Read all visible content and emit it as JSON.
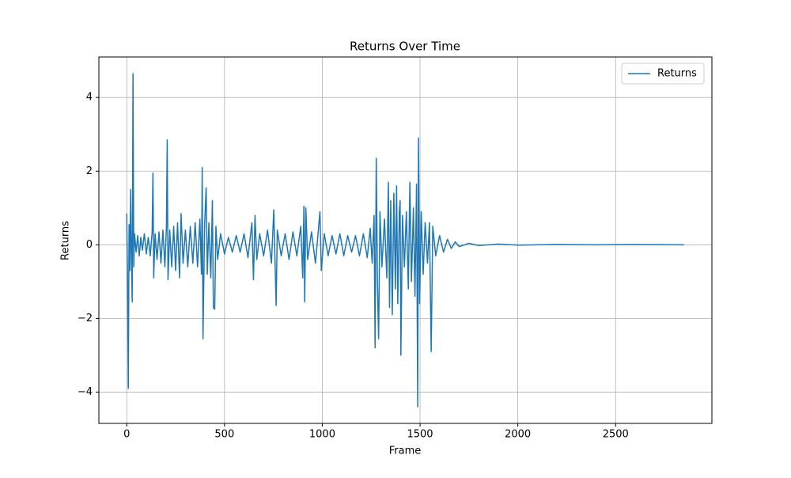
{
  "chart_data": {
    "type": "line",
    "title": "Returns Over Time",
    "x_label": "Frame",
    "y_label": "Returns",
    "x": [
      0,
      4,
      8,
      12,
      16,
      20,
      24,
      28,
      32,
      36,
      40,
      48,
      56,
      64,
      72,
      80,
      90,
      100,
      110,
      120,
      130,
      134,
      138,
      145,
      155,
      165,
      175,
      185,
      195,
      203,
      207,
      211,
      220,
      230,
      240,
      250,
      260,
      270,
      278,
      288,
      300,
      312,
      325,
      338,
      350,
      362,
      374,
      382,
      386,
      390,
      398,
      406,
      412,
      420,
      430,
      438,
      443,
      450,
      456,
      465,
      480,
      500,
      520,
      540,
      560,
      580,
      600,
      620,
      640,
      648,
      656,
      665,
      680,
      700,
      720,
      740,
      752,
      760,
      764,
      770,
      790,
      810,
      830,
      850,
      870,
      890,
      900,
      906,
      910,
      916,
      925,
      945,
      965,
      980,
      988,
      995,
      1010,
      1030,
      1050,
      1070,
      1090,
      1110,
      1130,
      1150,
      1170,
      1190,
      1210,
      1230,
      1245,
      1255,
      1265,
      1270,
      1276,
      1282,
      1288,
      1295,
      1305,
      1318,
      1330,
      1338,
      1344,
      1350,
      1358,
      1366,
      1374,
      1380,
      1386,
      1394,
      1398,
      1402,
      1410,
      1420,
      1430,
      1440,
      1448,
      1456,
      1466,
      1474,
      1482,
      1488,
      1492,
      1498,
      1506,
      1516,
      1526,
      1538,
      1548,
      1557,
      1565,
      1580,
      1600,
      1620,
      1640,
      1660,
      1680,
      1700,
      1750,
      1800,
      1900,
      2000,
      2200,
      2400,
      2600,
      2850
    ],
    "series": [
      {
        "name": "Returns",
        "color": "#1f77b4",
        "values": [
          0.85,
          -0.9,
          -3.9,
          0.55,
          -0.7,
          1.5,
          -0.3,
          -1.55,
          4.65,
          -0.6,
          0.3,
          -0.2,
          0.25,
          -0.3,
          0.2,
          -0.15,
          0.3,
          -0.25,
          0.2,
          -0.3,
          0.35,
          1.95,
          -0.9,
          0.3,
          -0.4,
          0.35,
          -0.5,
          0.4,
          -0.6,
          0.5,
          2.85,
          -0.95,
          0.4,
          -0.6,
          0.5,
          -0.7,
          0.6,
          -0.9,
          0.85,
          -0.5,
          0.4,
          -0.6,
          0.5,
          -0.5,
          0.6,
          -0.6,
          0.7,
          -0.8,
          2.1,
          -2.55,
          0.5,
          1.55,
          -0.8,
          0.6,
          -0.9,
          1.2,
          -1.7,
          -1.75,
          0.5,
          -0.4,
          0.3,
          -0.25,
          0.2,
          -0.2,
          0.25,
          -0.2,
          0.3,
          -0.35,
          0.6,
          -0.95,
          0.8,
          -0.4,
          0.3,
          -0.3,
          0.4,
          -0.5,
          0.95,
          -0.8,
          -1.65,
          0.4,
          -0.3,
          0.3,
          -0.4,
          0.35,
          -0.3,
          0.5,
          -0.9,
          1.05,
          -1.55,
          1.0,
          -0.4,
          0.35,
          -0.5,
          0.4,
          0.9,
          -0.7,
          0.3,
          -0.3,
          0.25,
          -0.25,
          0.3,
          -0.3,
          0.25,
          -0.2,
          0.25,
          -0.3,
          0.3,
          -0.35,
          0.45,
          -0.5,
          0.8,
          -2.8,
          2.35,
          -1.0,
          -2.55,
          0.9,
          -0.6,
          0.7,
          -0.9,
          1.7,
          -1.7,
          1.2,
          -1.9,
          1.4,
          -1.2,
          1.6,
          -1.6,
          0.9,
          1.2,
          -3.0,
          0.8,
          -0.6,
          0.9,
          -1.2,
          1.7,
          -1.0,
          1.0,
          -1.4,
          1.65,
          -4.4,
          2.9,
          -1.6,
          0.9,
          -0.8,
          0.6,
          -0.5,
          0.6,
          -2.9,
          0.5,
          -0.3,
          0.25,
          -0.2,
          0.15,
          -0.1,
          0.08,
          -0.05,
          0.04,
          -0.02,
          0.02,
          -0.01,
          0.01,
          0,
          0.01,
          0
        ]
      }
    ],
    "xlim": [
      -142.5,
      2992.5
    ],
    "ylim": [
      -4.85,
      5.1
    ],
    "xticks": [
      0,
      500,
      1000,
      1500,
      2000,
      2500
    ],
    "yticks": [
      {
        "value": -4,
        "label": "−4"
      },
      {
        "value": -2,
        "label": "−2"
      },
      0,
      2,
      4
    ],
    "grid": true,
    "legend": "upper-right"
  }
}
